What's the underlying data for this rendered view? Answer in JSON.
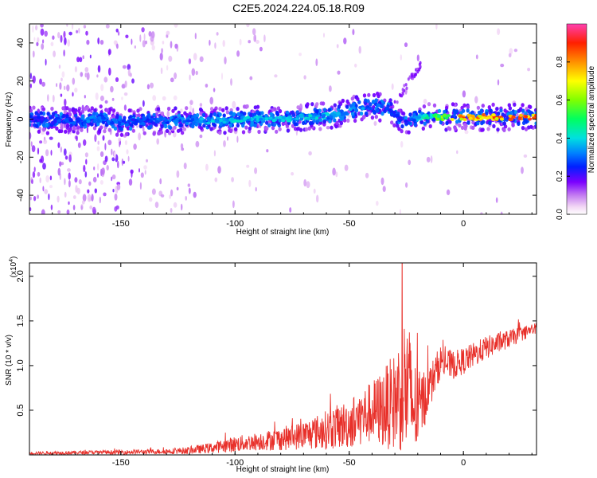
{
  "title": "C2E5.2024.224.05.18.R09",
  "colors": {
    "snr_line": "#e8302a",
    "axis": "#000000",
    "background": "#ffffff"
  },
  "chart_data": [
    {
      "type": "heatmap",
      "xlabel": "Height of straight line (km)",
      "ylabel": "Frequency (Hz)",
      "xlim": [
        -190,
        32
      ],
      "ylim": [
        -50,
        50
      ],
      "x_ticks": [
        "-150",
        "-100",
        "-50",
        "0"
      ],
      "x_tick_values": [
        -150,
        -100,
        -50,
        0
      ],
      "y_ticks": [
        "40",
        "20",
        "0",
        "-20",
        "-40"
      ],
      "y_tick_values": [
        40,
        20,
        0,
        -20,
        -40
      ],
      "colorbar": {
        "label": "Normalized spectral amplitude",
        "range": [
          0,
          1
        ],
        "ticks": [
          "0.0",
          "0.2",
          "0.4",
          "0.6",
          "0.8"
        ],
        "tick_values": [
          0.0,
          0.2,
          0.4,
          0.6,
          0.8
        ]
      },
      "ridge": {
        "x": [
          -190,
          -170,
          -160,
          -150,
          -140,
          -130,
          -120,
          -110,
          -100,
          -90,
          -80,
          -70,
          -60,
          -50,
          -45,
          -40,
          -35,
          -32,
          -28,
          -25,
          -22,
          -18,
          -10,
          0,
          10,
          20,
          32
        ],
        "freq": [
          0,
          -1,
          0,
          -2,
          -1,
          -1,
          -1,
          -1,
          0,
          0,
          0,
          1,
          2,
          4,
          6,
          7,
          6,
          5,
          0,
          -2,
          0,
          1,
          1,
          1,
          1,
          1,
          1
        ],
        "amplitude": [
          0.25,
          0.3,
          0.35,
          0.3,
          0.3,
          0.3,
          0.35,
          0.4,
          0.4,
          0.4,
          0.4,
          0.4,
          0.4,
          0.35,
          0.35,
          0.35,
          0.3,
          0.3,
          0.25,
          0.25,
          0.3,
          0.45,
          0.6,
          0.85,
          0.85,
          0.9,
          0.9
        ]
      }
    },
    {
      "type": "line",
      "xlabel": "Height of straight line (km)",
      "ylabel": "SNR (10 * v/v)",
      "y_multiplier": "(x10",
      "y_multiplier_exp": "4",
      "xlim": [
        -190,
        32
      ],
      "ylim": [
        0,
        21500
      ],
      "x_ticks": [
        "-150",
        "-100",
        "-50",
        "0"
      ],
      "x_tick_values": [
        -150,
        -100,
        -50,
        0
      ],
      "y_ticks": [
        "0.5",
        "1.0",
        "1.5",
        "2.0"
      ],
      "y_tick_values": [
        5000,
        10000,
        15000,
        20000
      ],
      "envelope": {
        "x": [
          -190,
          -170,
          -160,
          -150,
          -140,
          -130,
          -120,
          -110,
          -100,
          -90,
          -80,
          -70,
          -60,
          -50,
          -45,
          -40,
          -35,
          -30,
          -28,
          -25,
          -22,
          -20,
          -15,
          -10,
          -5,
          0,
          10,
          20,
          32
        ],
        "mean": [
          200,
          250,
          300,
          300,
          350,
          400,
          500,
          800,
          1200,
          1500,
          1800,
          2200,
          2800,
          3500,
          4200,
          4800,
          5200,
          6000,
          7000,
          7800,
          5500,
          4800,
          7500,
          10500,
          10000,
          10500,
          12000,
          13000,
          14200
        ],
        "spread": [
          150,
          200,
          200,
          250,
          250,
          300,
          400,
          600,
          900,
          1000,
          1300,
          1600,
          2200,
          2800,
          3200,
          3500,
          4500,
          5500,
          6500,
          9000,
          6000,
          4500,
          2500,
          1800,
          1600,
          1500,
          1300,
          1000,
          600
        ]
      }
    }
  ]
}
